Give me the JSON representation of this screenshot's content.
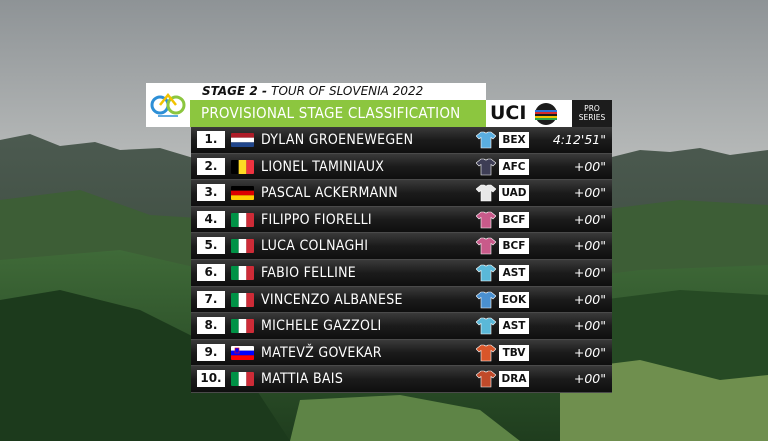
{
  "header": {
    "stage_label": "STAGE 2",
    "separator": " - ",
    "race_label": "TOUR OF SLOVENIA 2022",
    "classification_title": "PROVISIONAL STAGE CLASSIFICATION",
    "uci_label": "UCI",
    "series_line1": "PRO",
    "series_line2": "SERIES"
  },
  "colors": {
    "accent_green": "#8cc63f",
    "row_dark": "#151515"
  },
  "rows": [
    {
      "pos": "1.",
      "flag": "NED",
      "name": "DYLAN GROENEWEGEN",
      "team": "BEX",
      "jersey": "#5aaee0",
      "gap": "4:12'51\""
    },
    {
      "pos": "2.",
      "flag": "BEL",
      "name": "LIONEL TAMINIAUX",
      "team": "AFC",
      "jersey": "#3d3d55",
      "gap": "+00\""
    },
    {
      "pos": "3.",
      "flag": "GER",
      "name": "PASCAL ACKERMANN",
      "team": "UAD",
      "jersey": "#e8e8e8",
      "gap": "+00\""
    },
    {
      "pos": "4.",
      "flag": "ITA",
      "name": "FILIPPO FIORELLI",
      "team": "BCF",
      "jersey": "#c85a8a",
      "gap": "+00\""
    },
    {
      "pos": "5.",
      "flag": "ITA",
      "name": "LUCA COLNAGHI",
      "team": "BCF",
      "jersey": "#c85a8a",
      "gap": "+00\""
    },
    {
      "pos": "6.",
      "flag": "ITA",
      "name": "FABIO FELLINE",
      "team": "AST",
      "jersey": "#5ab8d8",
      "gap": "+00\""
    },
    {
      "pos": "7.",
      "flag": "ITA",
      "name": "VINCENZO ALBANESE",
      "team": "EOK",
      "jersey": "#4a90d0",
      "gap": "+00\""
    },
    {
      "pos": "8.",
      "flag": "ITA",
      "name": "MICHELE GAZZOLI",
      "team": "AST",
      "jersey": "#5ab8d8",
      "gap": "+00\""
    },
    {
      "pos": "9.",
      "flag": "SLO",
      "name": "MATEVŽ GOVEKAR",
      "team": "TBV",
      "jersey": "#d8562a",
      "gap": "+00\""
    },
    {
      "pos": "10.",
      "flag": "ITA",
      "name": "MATTIA BAIS",
      "team": "DRA",
      "jersey": "#c04a2a",
      "gap": "+00\""
    }
  ]
}
